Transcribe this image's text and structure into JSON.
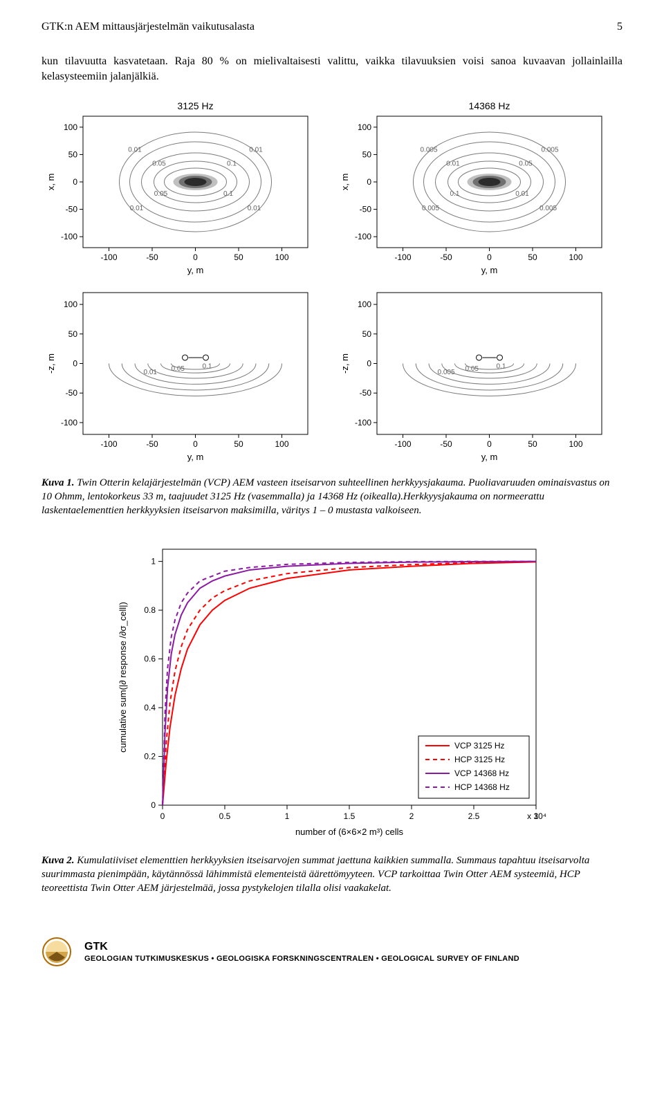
{
  "page": {
    "running_head": "GTK:n AEM mittausjärjestelmän vaikutusalasta",
    "page_number": "5",
    "body_paragraph": "kun tilavuutta kasvatetaan. Raja 80 % on mielivaltaisesti valittu, vaikka tilavuuksien voisi sanoa kuvaavan jollainlailla kelasysteemiin jalanjälkiä."
  },
  "fig1": {
    "label": "Kuva 1.",
    "caption": "Twin Otterin kelajärjestelmän (VCP) AEM vasteen itseisarvon suhteellinen herkkyysjakauma. Puoliavaruuden ominaisvastus on 10 Ohmm, lentokorkeus 33 m, taajuudet 3125 Hz (vasemmalla) ja 14368 Hz (oikealla).Herkkyysjakauma on normeerattu laskentaelementtien herkkyyksien itseisarvon maksimilla, väritys 1 – 0 mustasta valkoiseen.",
    "common": {
      "xlabel": "y,   m",
      "ylabel_top": "x,   m",
      "ylabel_bot": "-z,   m",
      "xlim": [
        -130,
        130
      ],
      "ylim_top": [
        -120,
        120
      ],
      "ylim_bot": [
        -120,
        120
      ],
      "xticks": [
        -100,
        -50,
        0,
        50,
        100
      ],
      "yticks_top": [
        -100,
        -50,
        0,
        50,
        100
      ],
      "yticks_bot": [
        -100,
        -50,
        0,
        50,
        100
      ],
      "bg": "#ffffff",
      "axis_color": "#000000",
      "tick_fontsize": 12,
      "label_fontsize": 13,
      "title_fontsize": 14,
      "contour_color": "#7a7a7a",
      "core_fill_dark": "#2b2b2b",
      "core_fill_mid": "#707070",
      "core_fill_light": "#c0c0c0"
    },
    "top_left": {
      "title": "3125 Hz",
      "contour_levels": [
        "0.01",
        "0.01",
        "0.05",
        "0.1",
        "0.05",
        "0.1",
        "0.01",
        "0.01"
      ]
    },
    "top_right": {
      "title": "14368 Hz",
      "contour_levels": [
        "0.005",
        "0.005",
        "0.01",
        "0.05",
        "0.1",
        "0.01",
        "0.005",
        "0.005"
      ]
    },
    "bot_left": {
      "contour_levels": [
        "0.01",
        "0.05",
        "0.1"
      ]
    },
    "bot_right": {
      "contour_levels": [
        "0.005",
        "0.05",
        "0.1"
      ]
    }
  },
  "fig2": {
    "label": "Kuva 2.",
    "caption": "Kumulatiiviset elementtien herkkyyksien itseisarvojen summat jaettuna kaikkien summalla. Summaus tapahtuu itseisarvolta suurimmasta pienimpään, käytännössä lähimmistä elementeistä äärettömyyteen. VCP tarkoittaa Twin Otter AEM systeemiä, HCP teoreettista Twin Otter AEM järjestelmää, jossa pystykelojen tilalla olisi vaakakelat.",
    "xlabel": "number of (6×6×2 m³)  cells",
    "ylabel": "cumulative sum(|∂ response /∂σ_cell|)",
    "xlim": [
      0,
      3
    ],
    "ylim": [
      0,
      1.05
    ],
    "xticks": [
      0,
      0.5,
      1,
      1.5,
      2,
      2.5,
      3
    ],
    "yticks": [
      0,
      0.2,
      0.4,
      0.6,
      0.8,
      1
    ],
    "x_exponent": "x 10⁴",
    "bg": "#ffffff",
    "axis_color": "#000000",
    "series": [
      {
        "name": "VCP 3125 Hz",
        "color": "#ff0000",
        "dash": "none",
        "curve": "a"
      },
      {
        "name": "HCP 3125 Hz",
        "color": "#ff0000",
        "dash": "6,5",
        "curve": "b"
      },
      {
        "name": "VCP 14368 Hz",
        "color": "#8b1aa3",
        "dash": "none",
        "curve": "c"
      },
      {
        "name": "HCP 14368 Hz",
        "color": "#8b1aa3",
        "dash": "6,5",
        "curve": "d"
      }
    ],
    "curves": {
      "a": [
        [
          0,
          0
        ],
        [
          0.03,
          0.18
        ],
        [
          0.06,
          0.32
        ],
        [
          0.1,
          0.45
        ],
        [
          0.15,
          0.56
        ],
        [
          0.2,
          0.64
        ],
        [
          0.3,
          0.74
        ],
        [
          0.4,
          0.8
        ],
        [
          0.5,
          0.84
        ],
        [
          0.7,
          0.89
        ],
        [
          1.0,
          0.93
        ],
        [
          1.5,
          0.965
        ],
        [
          2.0,
          0.98
        ],
        [
          2.5,
          0.992
        ],
        [
          3.0,
          0.998
        ]
      ],
      "b": [
        [
          0,
          0
        ],
        [
          0.03,
          0.26
        ],
        [
          0.06,
          0.42
        ],
        [
          0.1,
          0.55
        ],
        [
          0.15,
          0.65
        ],
        [
          0.2,
          0.72
        ],
        [
          0.3,
          0.8
        ],
        [
          0.4,
          0.85
        ],
        [
          0.5,
          0.88
        ],
        [
          0.7,
          0.92
        ],
        [
          1.0,
          0.95
        ],
        [
          1.5,
          0.975
        ],
        [
          2.0,
          0.987
        ],
        [
          2.5,
          0.995
        ],
        [
          3.0,
          0.999
        ]
      ],
      "c": [
        [
          0,
          0
        ],
        [
          0.02,
          0.3
        ],
        [
          0.04,
          0.48
        ],
        [
          0.07,
          0.62
        ],
        [
          0.1,
          0.7
        ],
        [
          0.15,
          0.78
        ],
        [
          0.2,
          0.83
        ],
        [
          0.3,
          0.89
        ],
        [
          0.4,
          0.92
        ],
        [
          0.5,
          0.94
        ],
        [
          0.7,
          0.965
        ],
        [
          1.0,
          0.98
        ],
        [
          1.5,
          0.992
        ],
        [
          2.0,
          0.997
        ],
        [
          2.5,
          0.999
        ],
        [
          3.0,
          1.0
        ]
      ],
      "d": [
        [
          0,
          0
        ],
        [
          0.02,
          0.38
        ],
        [
          0.04,
          0.56
        ],
        [
          0.07,
          0.69
        ],
        [
          0.1,
          0.76
        ],
        [
          0.15,
          0.83
        ],
        [
          0.2,
          0.87
        ],
        [
          0.3,
          0.92
        ],
        [
          0.4,
          0.94
        ],
        [
          0.5,
          0.96
        ],
        [
          0.7,
          0.975
        ],
        [
          1.0,
          0.988
        ],
        [
          1.5,
          0.996
        ],
        [
          2.0,
          0.999
        ],
        [
          2.5,
          1.0
        ],
        [
          3.0,
          1.0
        ]
      ]
    },
    "legend_pos": "bottom-right",
    "line_width": 2
  },
  "footer": {
    "text": "GEOLOGIAN TUTKIMUSKESKUS • GEOLOGISKA FORSKNINGSCENTRALEN • GEOLOGICAL SURVEY OF FINLAND",
    "logo_name": "GTK",
    "logo_colors": {
      "ring": "#b06a00",
      "globe_light": "#f7dca0",
      "globe_mid": "#d3a54a",
      "globe_dark": "#7a5315"
    }
  }
}
